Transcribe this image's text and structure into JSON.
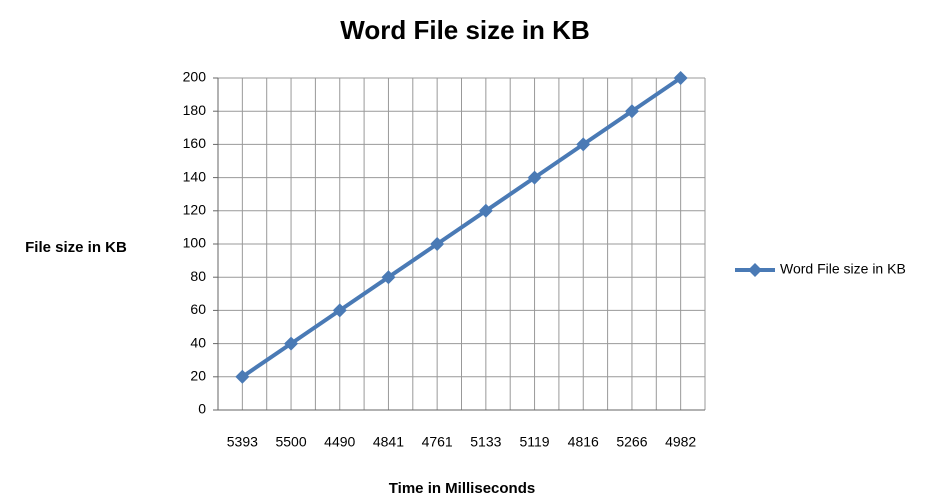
{
  "chart_data": {
    "type": "line",
    "title": "Word File size in KB",
    "x_label": "Time in Milliseconds",
    "y_label": "File size in KB",
    "categories": [
      "5393",
      "5500",
      "4490",
      "4841",
      "4761",
      "5133",
      "5119",
      "4816",
      "5266",
      "4982"
    ],
    "series": [
      {
        "name": "Word File size  in KB",
        "color": "#4a7ab5",
        "values": [
          20,
          40,
          60,
          80,
          100,
          120,
          140,
          160,
          180,
          200
        ]
      }
    ],
    "ylim": [
      0,
      200
    ],
    "yticks": [
      0,
      20,
      40,
      60,
      80,
      100,
      120,
      140,
      160,
      180,
      200
    ],
    "grid": true,
    "legend": "right"
  }
}
